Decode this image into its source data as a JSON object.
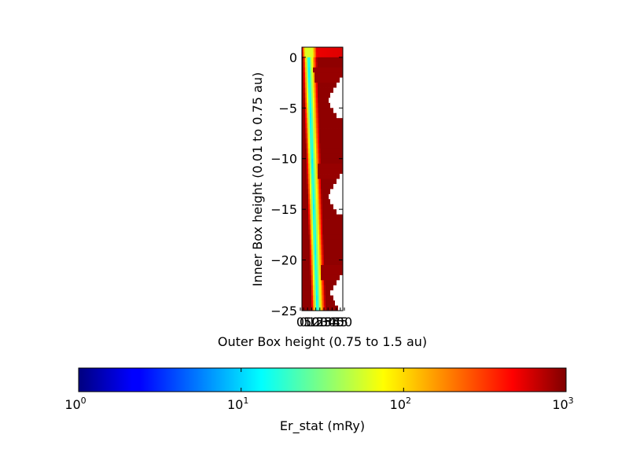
{
  "chart_data": {
    "type": "heatmap",
    "title": "",
    "xlabel": "Outer Box height (0.75 to 1.5 au)",
    "ylabel": "Inner Box height (0.01 to 0.75 au)",
    "x_ticks": [
      "0",
      "0",
      "5",
      "10",
      "15",
      "20",
      "25",
      "30",
      "35",
      "40",
      "45",
      "50"
    ],
    "y_ticks": [
      {
        "value": 0,
        "label": "0"
      },
      {
        "value": -5,
        "label": "−5"
      },
      {
        "value": -10,
        "label": "−10"
      },
      {
        "value": -15,
        "label": "−15"
      },
      {
        "value": -20,
        "label": "−20"
      },
      {
        "value": -25,
        "label": "−25"
      }
    ],
    "ylim": [
      -25,
      1
    ],
    "grid": false,
    "colormap": "jet",
    "color_scale": "log",
    "colorbar": {
      "label": "Er_stat (mRy)",
      "orientation": "horizontal",
      "range": [
        1,
        1000
      ],
      "ticks": [
        {
          "value": 1,
          "base": "10",
          "exp": "0"
        },
        {
          "value": 10,
          "base": "10",
          "exp": "1"
        },
        {
          "value": 100,
          "base": "10",
          "exp": "2"
        },
        {
          "value": 1000,
          "base": "10",
          "exp": "3"
        }
      ]
    },
    "grid_shape": {
      "columns": 26,
      "rows": 52
    },
    "field_description": {
      "valley_start_column": 3.5,
      "valley_end_column": 9.2,
      "valley_min_value": 12,
      "white_blank_bands": [
        {
          "row_start": 6,
          "row_end": 14,
          "col_start_at_top": 9,
          "slope": 1.7
        },
        {
          "row_start": 25,
          "row_end": 33,
          "col_start_at_top": 9,
          "slope": 1.7
        },
        {
          "row_start": 45,
          "row_end": 52,
          "col_start_at_top": 12,
          "slope": 2.0
        }
      ]
    }
  }
}
